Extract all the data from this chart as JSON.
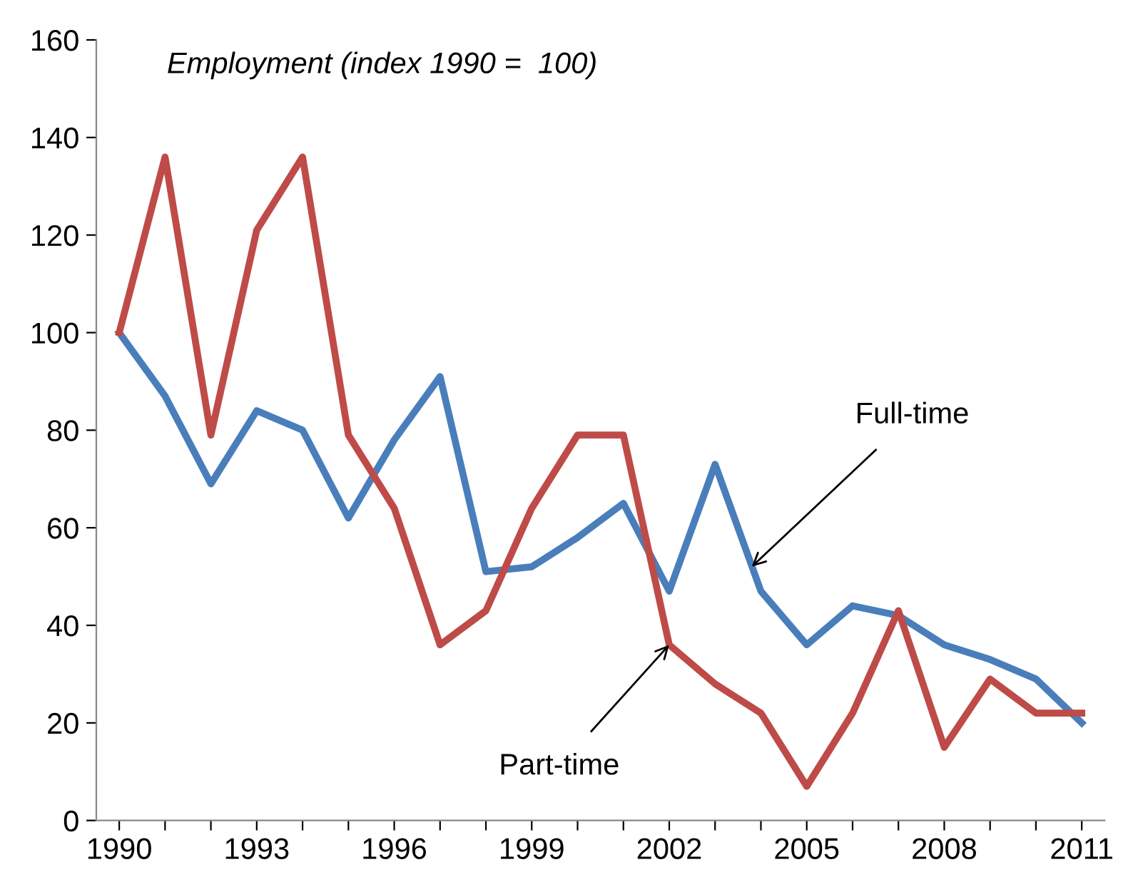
{
  "chart_data": {
    "type": "line",
    "title": "Employment (index 1990 =  100)",
    "x": [
      1990,
      1991,
      1992,
      1993,
      1994,
      1995,
      1996,
      1997,
      1998,
      1999,
      2000,
      2001,
      2002,
      2003,
      2004,
      2005,
      2006,
      2007,
      2008,
      2009,
      2010,
      2011
    ],
    "series": [
      {
        "color": "#4a7ebb",
        "values": [
          100,
          87,
          69,
          84,
          80,
          62,
          78,
          91,
          51,
          52,
          58,
          65,
          47,
          73,
          47,
          36,
          44,
          42,
          36,
          33,
          29,
          20
        ]
      },
      {
        "color": "#be4b48",
        "values": [
          100,
          136,
          79,
          121,
          136,
          79,
          64,
          36,
          43,
          64,
          79,
          79,
          36,
          28,
          22,
          7,
          22,
          43,
          15,
          29,
          22,
          22
        ]
      }
    ],
    "annotations": [
      {
        "text": "Full-time",
        "x": 2003.8,
        "y": 52
      },
      {
        "text": "Part-time",
        "x": 2002,
        "y": 36
      }
    ],
    "xlim": [
      1989.5,
      2011.5
    ],
    "xticks": [
      1990,
      {
        "value": 1991,
        "label": null
      },
      {
        "value": 1992,
        "label": null
      },
      1993,
      {
        "value": 1994,
        "label": null
      },
      {
        "value": 1995,
        "label": null
      },
      1996,
      {
        "value": 1997,
        "label": null
      },
      {
        "value": 1998,
        "label": null
      },
      1999,
      {
        "value": 2000,
        "label": null
      },
      {
        "value": 2001,
        "label": null
      },
      2002,
      {
        "value": 2003,
        "label": null
      },
      {
        "value": 2004,
        "label": null
      },
      2005,
      {
        "value": 2006,
        "label": null
      },
      {
        "value": 2007,
        "label": null
      },
      2008,
      {
        "value": 2009,
        "label": null
      },
      {
        "value": 2010,
        "label": null
      },
      2011
    ],
    "ylim": [
      0,
      160
    ],
    "yticks": [
      0,
      20,
      40,
      60,
      80,
      100,
      120,
      140,
      160
    ],
    "grid": false,
    "marker": "none",
    "line_style": "solid"
  }
}
